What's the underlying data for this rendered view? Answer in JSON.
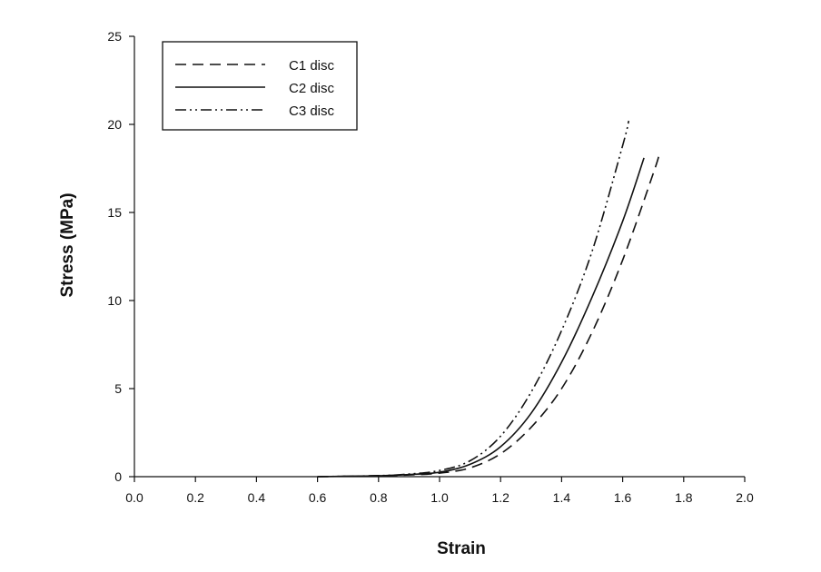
{
  "chart_data": {
    "type": "line",
    "xlabel": "Strain",
    "ylabel": "Stress (MPa)",
    "xlim": [
      0.0,
      2.0
    ],
    "ylim": [
      0,
      25
    ],
    "x_ticks": [
      "0.0",
      "0.2",
      "0.4",
      "0.6",
      "0.8",
      "1.0",
      "1.2",
      "1.4",
      "1.6",
      "1.8",
      "2.0"
    ],
    "y_ticks": [
      "0",
      "5",
      "10",
      "15",
      "20",
      "25"
    ],
    "grid": false,
    "legend_position": "top-left",
    "series": [
      {
        "name": "C1 disc",
        "line_style": "dashed",
        "color": "#111111",
        "x": [
          0.6,
          0.8,
          0.9,
          1.0,
          1.1,
          1.2,
          1.3,
          1.4,
          1.5,
          1.6,
          1.7,
          1.72
        ],
        "y": [
          0.0,
          0.05,
          0.1,
          0.2,
          0.5,
          1.3,
          2.8,
          5.0,
          8.2,
          12.3,
          17.2,
          18.3
        ]
      },
      {
        "name": "C2 disc",
        "line_style": "solid",
        "color": "#111111",
        "x": [
          0.6,
          0.8,
          0.9,
          1.0,
          1.1,
          1.2,
          1.3,
          1.4,
          1.5,
          1.6,
          1.67
        ],
        "y": [
          0.0,
          0.05,
          0.12,
          0.25,
          0.7,
          1.7,
          3.6,
          6.5,
          10.2,
          14.5,
          18.1
        ]
      },
      {
        "name": "C3 disc",
        "line_style": "dash-dot-dot",
        "color": "#111111",
        "x": [
          0.6,
          0.8,
          0.9,
          1.0,
          1.1,
          1.2,
          1.3,
          1.4,
          1.5,
          1.6,
          1.62
        ],
        "y": [
          0.0,
          0.06,
          0.15,
          0.35,
          0.9,
          2.3,
          4.8,
          8.3,
          12.8,
          18.8,
          20.2
        ]
      }
    ]
  }
}
